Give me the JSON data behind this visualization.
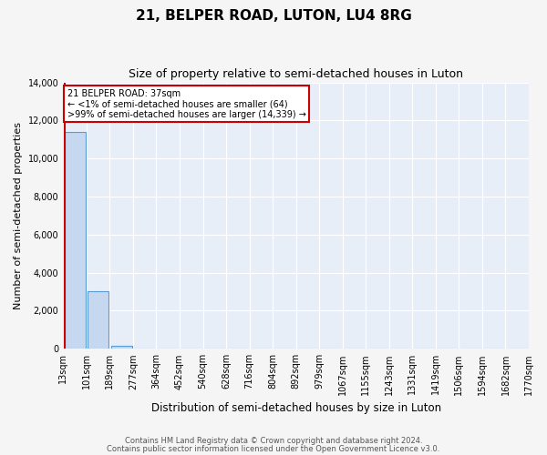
{
  "title1": "21, BELPER ROAD, LUTON, LU4 8RG",
  "title2": "Size of property relative to semi-detached houses in Luton",
  "xlabel": "Distribution of semi-detached houses by size in Luton",
  "ylabel": "Number of semi-detached properties",
  "bar_values": [
    11400,
    3050,
    160,
    0,
    0,
    0,
    0,
    0,
    0,
    0,
    0,
    0,
    0,
    0,
    0,
    0,
    0,
    0,
    0,
    0
  ],
  "bar_color": "#c5d8f0",
  "bar_edge_color": "#5a9bd4",
  "x_labels": [
    "13sqm",
    "101sqm",
    "189sqm",
    "277sqm",
    "364sqm",
    "452sqm",
    "540sqm",
    "628sqm",
    "716sqm",
    "804sqm",
    "892sqm",
    "979sqm",
    "1067sqm",
    "1155sqm",
    "1243sqm",
    "1331sqm",
    "1419sqm",
    "1506sqm",
    "1594sqm",
    "1682sqm",
    "1770sqm"
  ],
  "ylim": [
    0,
    14000
  ],
  "yticks": [
    0,
    2000,
    4000,
    6000,
    8000,
    10000,
    12000,
    14000
  ],
  "property_line_color": "#cc0000",
  "annotation_text": "21 BELPER ROAD: 37sqm\n← <1% of semi-detached houses are smaller (64)\n>99% of semi-detached houses are larger (14,339) →",
  "annotation_box_color": "#ffffff",
  "annotation_box_edge_color": "#cc0000",
  "footer1": "Contains HM Land Registry data © Crown copyright and database right 2024.",
  "footer2": "Contains public sector information licensed under the Open Government Licence v3.0.",
  "bg_color": "#e8eef8",
  "grid_color": "#ffffff",
  "title1_fontsize": 11,
  "title2_fontsize": 9,
  "tick_fontsize": 7,
  "ylabel_fontsize": 8,
  "xlabel_fontsize": 8.5,
  "footer_fontsize": 6
}
